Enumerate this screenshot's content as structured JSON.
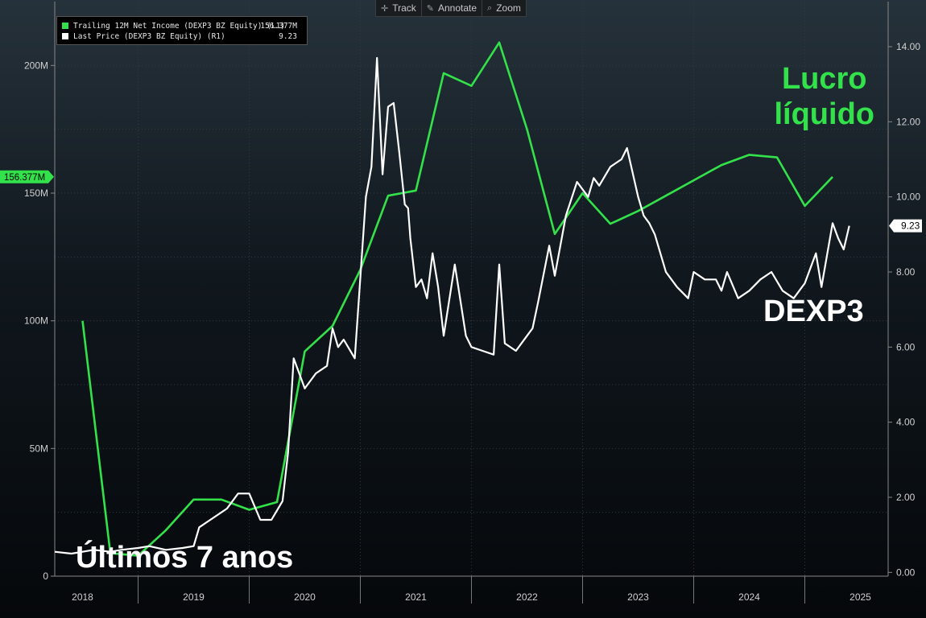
{
  "toolbar": {
    "track": "Track",
    "annotate": "Annotate",
    "zoom": "Zoom"
  },
  "legend": {
    "net_income_label": "Trailing 12M Net Income (DEXP3 BZ Equity) (L1)",
    "net_income_value": "156.377M",
    "price_label": "Last Price (DEXP3 BZ Equity) (R1)",
    "price_value": "9.23"
  },
  "annotations": {
    "lucro_line1": "Lucro",
    "lucro_line2": "líquido",
    "ticker": "DEXP3",
    "period": "Últimos 7 anos"
  },
  "colors": {
    "net_income": "#33e24a",
    "price": "#ffffff",
    "background_top": "#26323b",
    "background_bottom": "#05080b"
  },
  "chart_data": {
    "type": "line",
    "x_ticks": [
      "2018",
      "2019",
      "2020",
      "2021",
      "2022",
      "2023",
      "2024",
      "2025"
    ],
    "xlim": [
      2017.75,
      2025.25
    ],
    "left_axis": {
      "ticks": [
        "0",
        "50M",
        "100M",
        "150M",
        "200M"
      ],
      "ylim": [
        0,
        225
      ],
      "unit": "M",
      "current_label": "156.377M"
    },
    "right_axis": {
      "ticks": [
        "0.00",
        "2.00",
        "4.00",
        "6.00",
        "8.00",
        "10.00",
        "12.00",
        "14.00"
      ],
      "ylim": [
        -0.1,
        15.2
      ],
      "current_label": "9.23"
    },
    "grid": true,
    "legend_position": "top-left",
    "series": [
      {
        "name": "Trailing 12M Net Income (DEXP3 BZ Equity) (L1)",
        "axis": "left",
        "x": [
          2018.0,
          2018.25,
          2018.5,
          2018.75,
          2019.0,
          2019.25,
          2019.5,
          2019.75,
          2020.0,
          2020.25,
          2020.5,
          2020.75,
          2021.0,
          2021.25,
          2021.5,
          2021.75,
          2022.0,
          2022.25,
          2022.5,
          2022.75,
          2023.0,
          2023.25,
          2023.5,
          2023.75,
          2024.0,
          2024.25,
          2024.5,
          2024.75
        ],
        "values": [
          100,
          9,
          8,
          18,
          30,
          30,
          26,
          29,
          88,
          98,
          120,
          149,
          151,
          197,
          192,
          209,
          175,
          134,
          150,
          138,
          143,
          149,
          155,
          161,
          165,
          164,
          145,
          156.377
        ]
      },
      {
        "name": "Last Price (DEXP3 BZ Equity) (R1)",
        "axis": "right",
        "x": [
          2017.75,
          2017.9,
          2018.0,
          2018.1,
          2018.25,
          2018.35,
          2018.5,
          2018.6,
          2018.75,
          2018.9,
          2019.0,
          2019.05,
          2019.15,
          2019.3,
          2019.4,
          2019.5,
          2019.6,
          2019.7,
          2019.8,
          2019.85,
          2019.9,
          2020.0,
          2020.1,
          2020.2,
          2020.25,
          2020.3,
          2020.35,
          2020.45,
          2020.55,
          2020.6,
          2020.65,
          2020.7,
          2020.75,
          2020.8,
          2020.85,
          2020.9,
          2020.93,
          2020.95,
          2021.0,
          2021.05,
          2021.1,
          2021.15,
          2021.2,
          2021.25,
          2021.35,
          2021.45,
          2021.5,
          2021.6,
          2021.7,
          2021.75,
          2021.8,
          2021.9,
          2022.0,
          2022.05,
          2022.1,
          2022.2,
          2022.25,
          2022.35,
          2022.45,
          2022.55,
          2022.6,
          2022.65,
          2022.75,
          2022.85,
          2022.9,
          2023.0,
          2023.05,
          2023.1,
          2023.15,
          2023.25,
          2023.35,
          2023.45,
          2023.5,
          2023.6,
          2023.7,
          2023.75,
          2023.8,
          2023.9,
          2024.0,
          2024.1,
          2024.2,
          2024.3,
          2024.4,
          2024.5,
          2024.6,
          2024.65,
          2024.75,
          2024.8,
          2024.85,
          2024.9
        ],
        "values": [
          0.55,
          0.5,
          0.55,
          0.6,
          0.55,
          0.6,
          0.65,
          0.7,
          0.6,
          0.65,
          0.7,
          1.2,
          1.4,
          1.7,
          2.1,
          2.1,
          1.4,
          1.4,
          1.9,
          3.2,
          5.7,
          4.9,
          5.3,
          5.5,
          6.5,
          6.0,
          6.2,
          5.7,
          10.0,
          10.8,
          13.7,
          10.6,
          12.4,
          12.5,
          11.2,
          9.8,
          9.7,
          8.9,
          7.6,
          7.8,
          7.3,
          8.5,
          7.6,
          6.3,
          8.2,
          6.3,
          6.0,
          5.9,
          5.8,
          8.2,
          6.1,
          5.9,
          6.3,
          6.5,
          7.2,
          8.7,
          7.9,
          9.5,
          10.4,
          10.0,
          10.5,
          10.3,
          10.8,
          11.0,
          11.3,
          10.0,
          9.5,
          9.3,
          9.0,
          8.0,
          7.6,
          7.3,
          8.0,
          7.8,
          7.8,
          7.5,
          8.0,
          7.3,
          7.5,
          7.8,
          8.0,
          7.5,
          7.3,
          7.7,
          8.5,
          7.6,
          9.3,
          8.9,
          8.6,
          9.23
        ]
      }
    ]
  }
}
